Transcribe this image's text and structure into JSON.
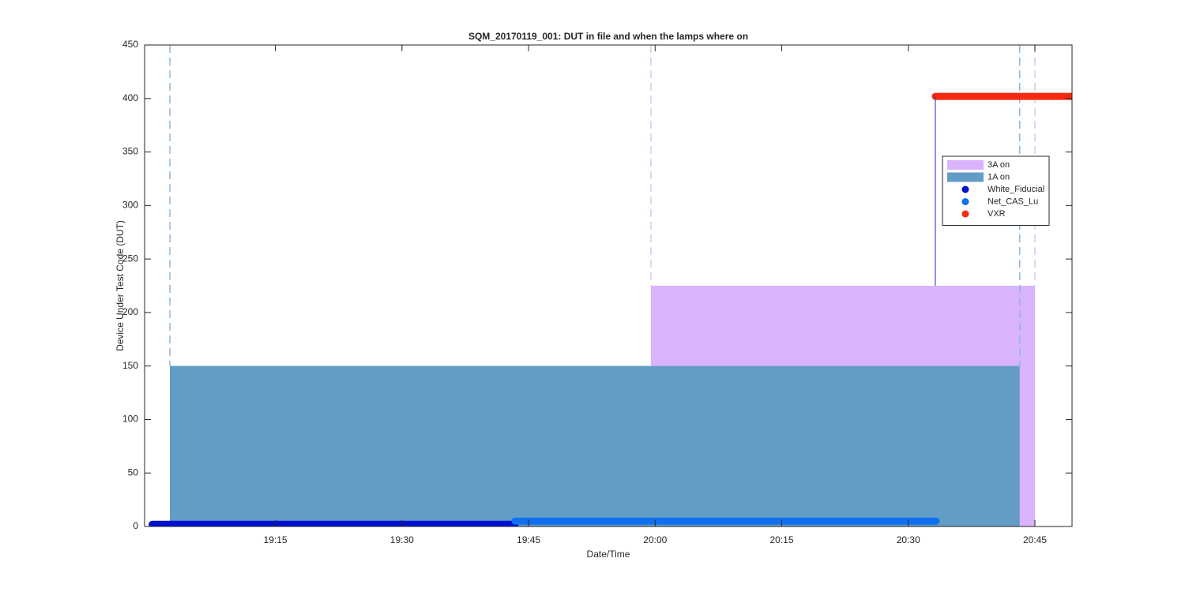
{
  "chart_data": {
    "type": "area",
    "title": "SQM_20170119_001: DUT in file and when the lamps where on",
    "x_label": "Date/Time",
    "y_label": "Device Under Test Code (DUT)",
    "xlim": [
      1139.5,
      1249.4
    ],
    "xticks": [
      {
        "value": 1155,
        "label": "19:15"
      },
      {
        "value": 1170,
        "label": "19:30"
      },
      {
        "value": 1185,
        "label": "19:45"
      },
      {
        "value": 1200,
        "label": "20:00"
      },
      {
        "value": 1215,
        "label": "20:15"
      },
      {
        "value": 1230,
        "label": "20:30"
      },
      {
        "value": 1245,
        "label": "20:45"
      }
    ],
    "ylim": [
      0,
      450
    ],
    "yticks": [
      0,
      50,
      100,
      150,
      200,
      250,
      300,
      350,
      400,
      450
    ],
    "legend": "upper right",
    "series": [
      {
        "name": "3A on",
        "type": "area",
        "color": "#d9b3fc",
        "edge_color": "#d8c6f2",
        "x": [
          1199.5,
          1245.0
        ],
        "values": [
          225,
          225
        ]
      },
      {
        "name": "1A on",
        "type": "area",
        "color": "#639dc6",
        "edge_color": "#8cb7e0",
        "x": [
          1142.5,
          1243.2
        ],
        "values": [
          150,
          150
        ]
      },
      {
        "name": "White_Fiducial",
        "type": "dots",
        "color": "#0010d0",
        "x": [
          1140.4,
          1183.4
        ],
        "values": [
          2,
          2
        ]
      },
      {
        "name": "Net_CAS_Lu",
        "type": "dots",
        "color": "#1070f0",
        "x": [
          1183.4,
          1233.3
        ],
        "values": [
          5,
          5
        ]
      },
      {
        "name": "VXR",
        "type": "dots",
        "color": "#f52a10",
        "x": [
          1233.2,
          1249.4
        ],
        "values": [
          402,
          402
        ]
      }
    ]
  }
}
